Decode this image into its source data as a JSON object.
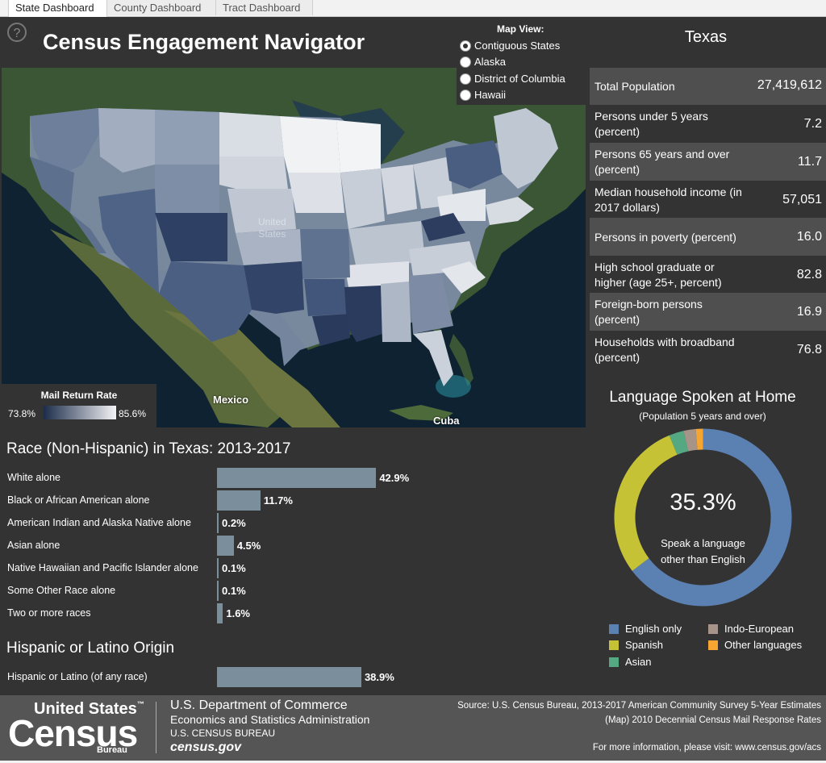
{
  "tabs": [
    "State Dashboard",
    "County Dashboard",
    "Tract Dashboard"
  ],
  "title": "Census Engagement Navigator",
  "help_glyph": "?",
  "map_view": {
    "header": "Map View:",
    "options": [
      "Contiguous States",
      "Alaska",
      "District of Columbia",
      "Hawaii"
    ],
    "selected": "Contiguous States"
  },
  "map": {
    "legend_title": "Mail Return Rate",
    "legend_min": "73.8%",
    "legend_max": "85.6%",
    "label_mexico": "Mexico",
    "label_cuba": "Cuba",
    "label_us_line1": "United",
    "label_us_line2": "States",
    "colors": {
      "low": "#1c2c4a",
      "high": "#f3f4f6",
      "land": "#3b5634",
      "water": "#0e2231"
    }
  },
  "state": {
    "name": "Texas",
    "stats": [
      {
        "label": "Total Population",
        "value": "27,419,612"
      },
      {
        "label": "Persons under 5 years (percent)",
        "value": "7.2"
      },
      {
        "label": "Persons 65 years and over (percent)",
        "value": "11.7"
      },
      {
        "label": "Median household income (in 2017 dollars)",
        "value": "57,051"
      },
      {
        "label": "Persons in poverty (percent)",
        "value": "16.0"
      },
      {
        "label": "High school graduate or higher (age 25+, percent)",
        "value": "82.8"
      },
      {
        "label": "Foreign-born persons (percent)",
        "value": "16.9"
      },
      {
        "label": "Households with broadband (percent)",
        "value": "76.8"
      }
    ]
  },
  "race": {
    "title": "Race (Non-Hispanic) in Texas: 2013-2017",
    "rows": [
      {
        "label": "White alone",
        "value": 42.9,
        "text": "42.9%"
      },
      {
        "label": "Black or African American alone",
        "value": 11.7,
        "text": "11.7%"
      },
      {
        "label": "American Indian and Alaska Native alone",
        "value": 0.2,
        "text": "0.2%"
      },
      {
        "label": "Asian alone",
        "value": 4.5,
        "text": "4.5%"
      },
      {
        "label": "Native Hawaiian and Pacific Islander alone",
        "value": 0.1,
        "text": "0.1%"
      },
      {
        "label": "Some Other Race alone",
        "value": 0.1,
        "text": "0.1%"
      },
      {
        "label": "Two or more races",
        "value": 1.6,
        "text": "1.6%"
      }
    ]
  },
  "hispanic": {
    "title": "Hispanic or Latino Origin",
    "rows": [
      {
        "label": "Hispanic or Latino (of any race)",
        "value": 38.9,
        "text": "38.9%"
      }
    ]
  },
  "language": {
    "title": "Language Spoken at Home",
    "subtitle": "(Population 5 years and over)",
    "center_value": "35.3%",
    "center_label_1": "Speak a language",
    "center_label_2": "other than English",
    "segments": [
      {
        "name": "English only",
        "value": 64.7,
        "color": "#5b80b2"
      },
      {
        "name": "Spanish",
        "value": 29.1,
        "color": "#c5c235"
      },
      {
        "name": "Asian",
        "value": 2.7,
        "color": "#54a882"
      },
      {
        "name": "Indo-European",
        "value": 2.2,
        "color": "#a79488"
      },
      {
        "name": "Other languages",
        "value": 1.3,
        "color": "#f4a532"
      }
    ]
  },
  "footer": {
    "logo_line1": "United States",
    "logo_tm": "™",
    "logo_line2": "Census",
    "logo_line3": "Bureau",
    "dept": "U.S. Department of Commerce",
    "esa": "Economics and Statistics Administration",
    "bureau": "U.S. CENSUS BUREAU",
    "site": "census.gov",
    "source1": "Source: U.S. Census Bureau, 2013-2017 American Community Survey 5-Year Estimates",
    "source2": "(Map) 2010 Decennial Census Mail Response Rates",
    "more": "For more information, please visit: www.census.gov/acs"
  }
}
